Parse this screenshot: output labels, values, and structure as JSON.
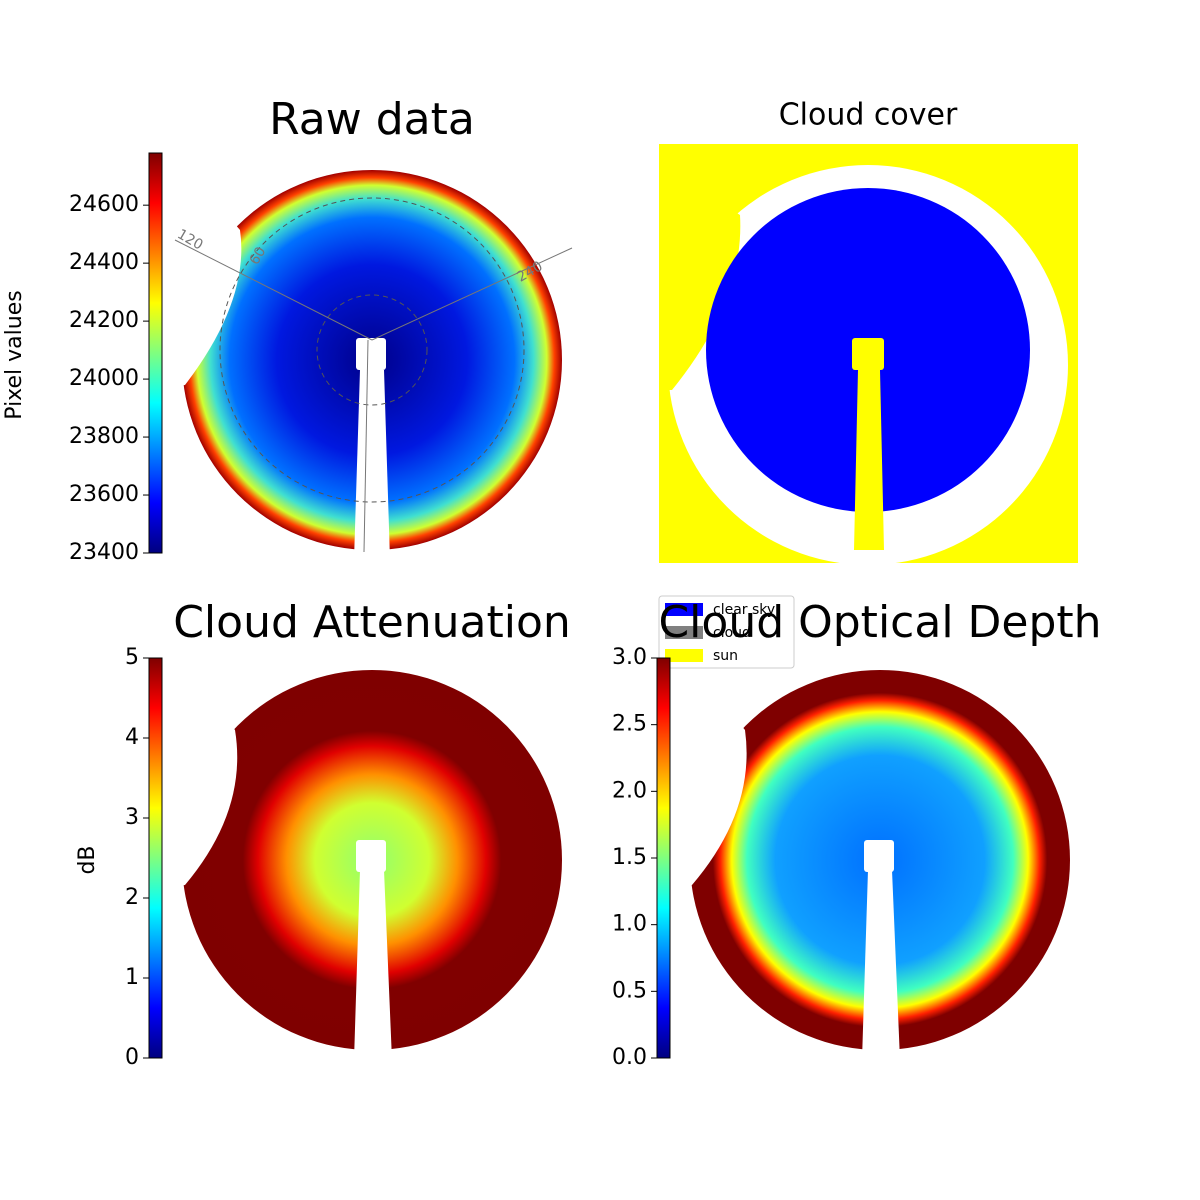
{
  "chart_data": [
    {
      "type": "heatmap",
      "title": "Raw data",
      "colorbar_label": "Pixel values",
      "colormap": "jet",
      "clim": [
        23400,
        24780
      ],
      "cticks": [
        23400,
        23600,
        23800,
        24000,
        24200,
        24400,
        24600
      ],
      "annotations": [
        "120",
        "60",
        "240"
      ]
    },
    {
      "type": "classes",
      "title": "Cloud cover",
      "legend": [
        {
          "name": "clear sky",
          "color": "#0000ff"
        },
        {
          "name": "cloud",
          "color": "#808080"
        },
        {
          "name": "sun",
          "color": "#ffff00"
        }
      ]
    },
    {
      "type": "heatmap",
      "title": "Cloud Attenuation",
      "colorbar_label": "dB",
      "colormap": "jet",
      "clim": [
        0,
        5
      ],
      "cticks": [
        0,
        1,
        2,
        3,
        4,
        5
      ]
    },
    {
      "type": "heatmap",
      "title": "Cloud Optical Depth",
      "colormap": "jet",
      "clim": [
        0,
        3
      ],
      "cticks": [
        {
          "value": 0,
          "label": "0.0"
        },
        {
          "value": 0.5,
          "label": "0.5"
        },
        {
          "value": 1,
          "label": "1.0"
        },
        {
          "value": 1.5,
          "label": "1.5"
        },
        {
          "value": 2,
          "label": "2.0"
        },
        {
          "value": 2.5,
          "label": "2.5"
        },
        {
          "value": 3,
          "label": "3.0"
        }
      ]
    }
  ]
}
